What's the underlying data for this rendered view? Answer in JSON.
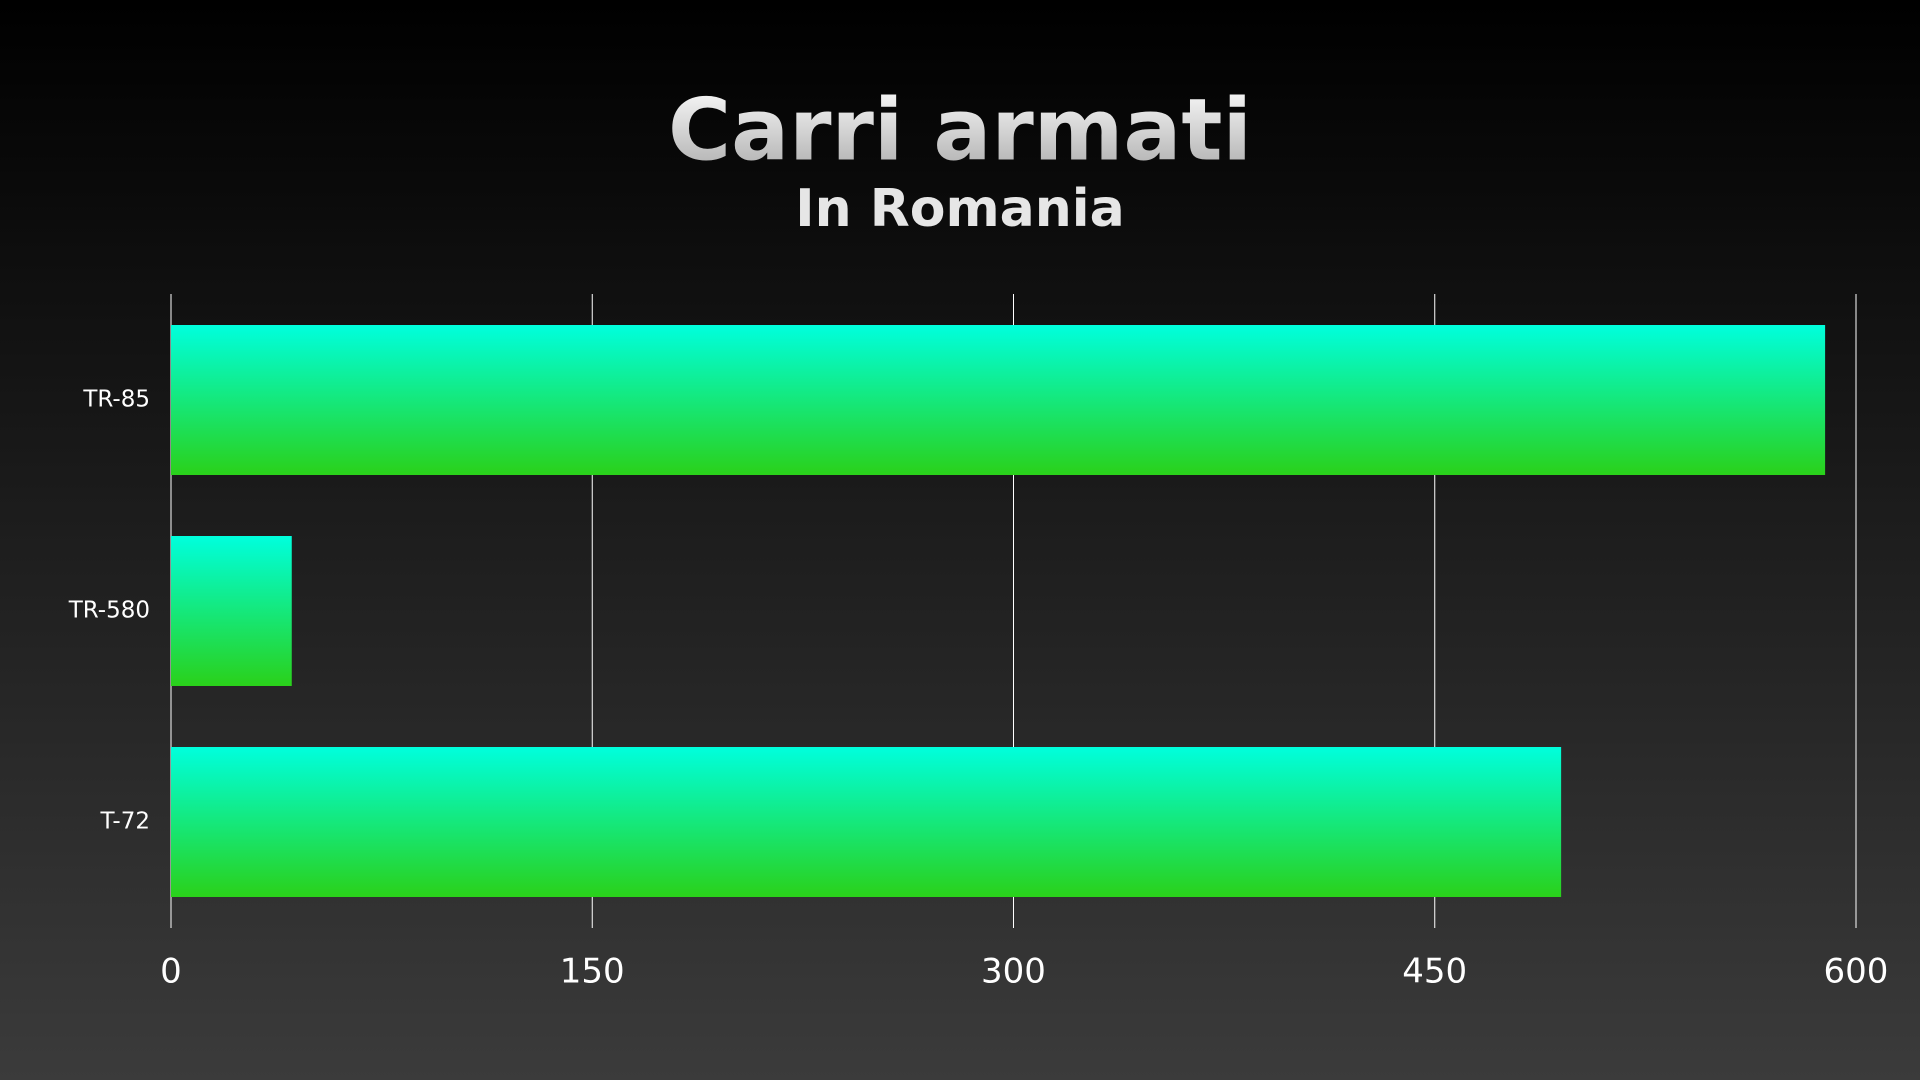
{
  "chart_data": {
    "type": "bar",
    "orientation": "horizontal",
    "title": "Carri armati",
    "subtitle": "In Romania",
    "categories": [
      "TR-85",
      "TR-580",
      "T-72"
    ],
    "values": [
      589,
      43,
      495
    ],
    "colors": [
      "#00ffdd",
      "#2ad11a"
    ],
    "xlim": [
      0,
      600
    ],
    "xticks": [
      0,
      150,
      300,
      450,
      600
    ],
    "grid": true
  }
}
